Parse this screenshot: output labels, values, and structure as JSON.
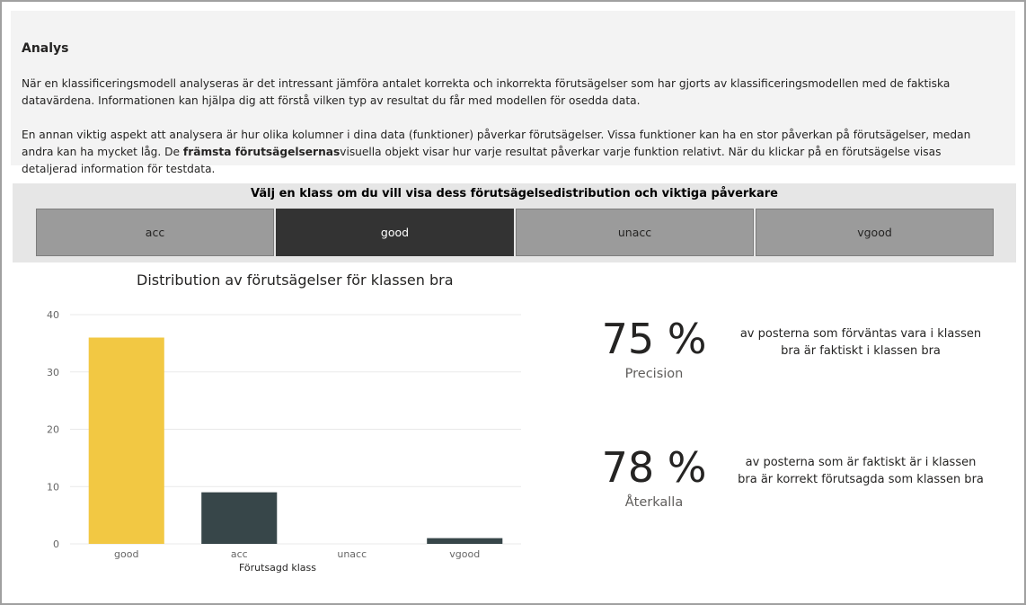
{
  "analysis": {
    "title": "Analys",
    "paragraph1": "När en klassificeringsmodell analyseras är det intressant jämföra antalet korrekta och inkorrekta förutsägelser som har gjorts av klassificeringsmodellen med de faktiska datavärdena. Informationen kan hjälpa dig att förstå vilken typ av resultat du får med modellen för osedda data.",
    "paragraph2_start": "En annan viktig aspekt att analysera är hur olika kolumner i dina data (funktioner) påverkar förutsägelser. Vissa funktioner kan ha en stor påverkan på förutsägelser, medan andra kan ha mycket låg. De ",
    "paragraph2_bold": "främsta förutsägelsernas",
    "paragraph2_end": "visuella objekt visar hur varje resultat påverkar varje funktion relativt. När du klickar på en förutsägelse visas detaljerad information för testdata."
  },
  "class_selector": {
    "heading": "Välj en klass om du vill visa dess förutsägelsedistribution och viktiga påverkare",
    "buttons": [
      {
        "label": "acc",
        "selected": false
      },
      {
        "label": "good",
        "selected": true
      },
      {
        "label": "unacc",
        "selected": false
      },
      {
        "label": "vgood",
        "selected": false
      }
    ]
  },
  "chart_data": {
    "type": "bar",
    "title": "Distribution av förutsägelser för klassen bra",
    "xlabel": "Förutsagd klass",
    "ylabel": "",
    "categories": [
      "good",
      "acc",
      "unacc",
      "vgood"
    ],
    "values": [
      36,
      9,
      0,
      1
    ],
    "colors": [
      "#f2c843",
      "#374649",
      "#374649",
      "#374649"
    ],
    "ylim": [
      0,
      40
    ],
    "yticks": [
      0,
      10,
      20,
      30,
      40
    ],
    "grid": true
  },
  "kpis": {
    "precision": {
      "value": "75 %",
      "label": "Precision",
      "desc_line1": "av posterna som förväntas vara i klassen",
      "desc_line2": "bra är faktiskt i klassen bra"
    },
    "recall": {
      "value": "78 %",
      "label": "Återkalla",
      "desc_line1": "av posterna som är faktiskt är i klassen",
      "desc_line2": "bra är korrekt förutsagda som klassen bra"
    }
  },
  "colors": {
    "selected_button": "#333333",
    "button": "#9b9b9b",
    "highlight_bar": "#f2c843",
    "bar": "#374649"
  }
}
